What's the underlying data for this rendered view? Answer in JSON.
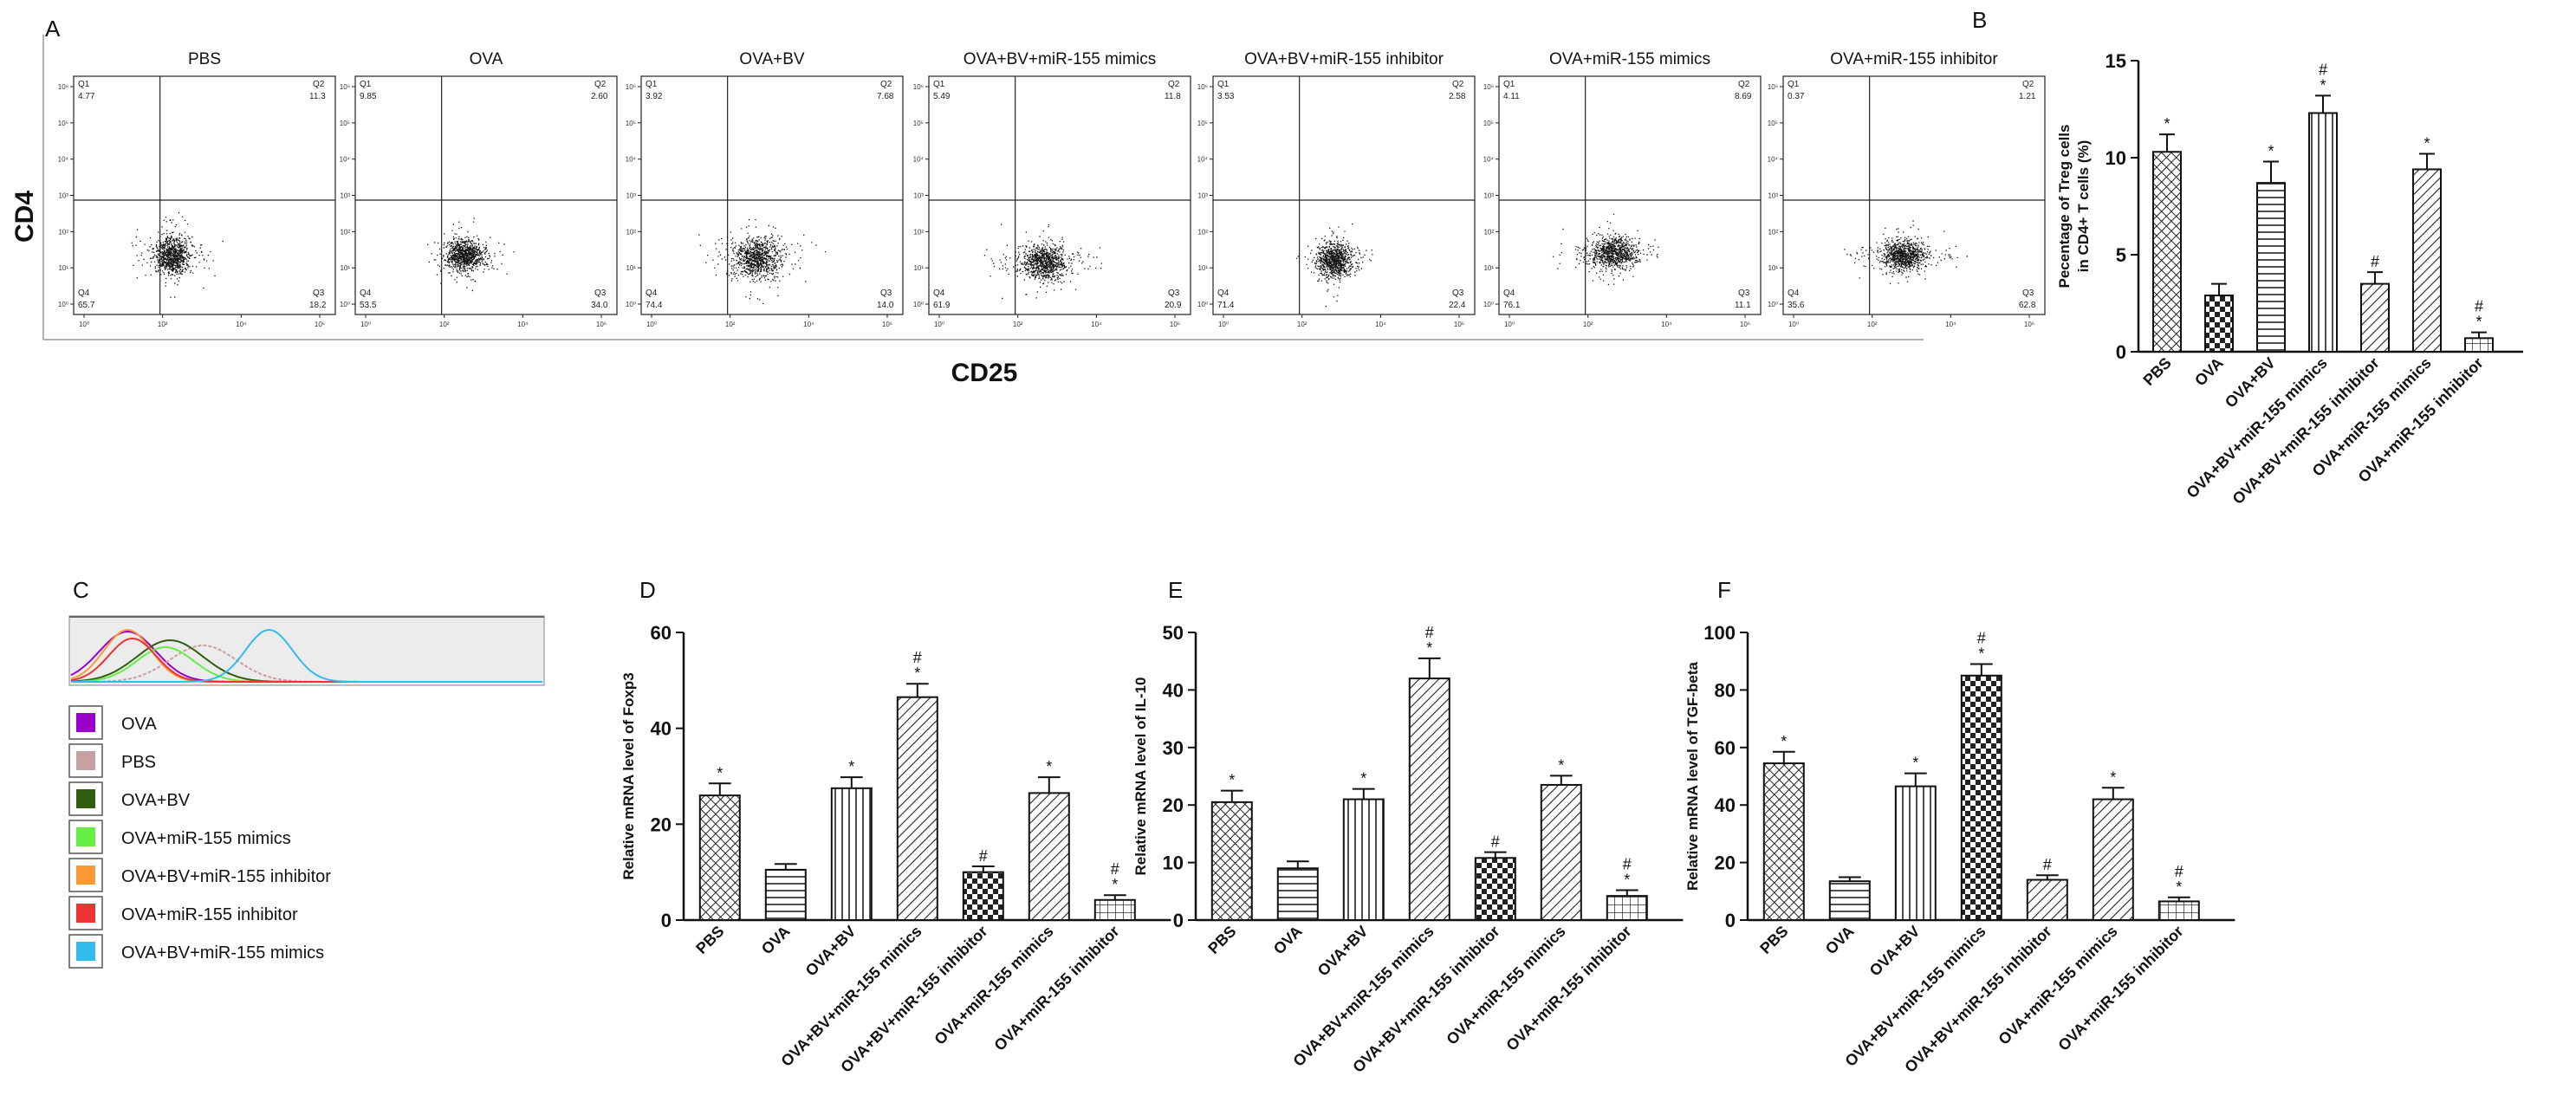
{
  "panels": {
    "A": "A",
    "B": "B",
    "C": "C",
    "D": "D",
    "E": "E",
    "F": "F"
  },
  "flow": {
    "y_axis": "CD4",
    "x_axis": "CD25",
    "tick_labels": [
      "10⁰",
      "10²",
      "10⁴",
      "10⁶"
    ],
    "plots": [
      {
        "title": "PBS",
        "q1": "4.77",
        "q2": "11.3",
        "q3": "18.2",
        "q4": "65.7"
      },
      {
        "title": "OVA",
        "q1": "9.85",
        "q2": "2.60",
        "q3": "34.0",
        "q4": "53.5"
      },
      {
        "title": "OVA+BV",
        "q1": "3.92",
        "q2": "7.68",
        "q3": "14.0",
        "q4": "74.4"
      },
      {
        "title": "OVA+BV+miR-155 mimics",
        "q1": "5.49",
        "q2": "11.8",
        "q3": "20.9",
        "q4": "61.9"
      },
      {
        "title": "OVA+BV+miR-155 inhibitor",
        "q1": "3.53",
        "q2": "2.58",
        "q3": "22.4",
        "q4": "71.4"
      },
      {
        "title": "OVA+miR-155 mimics",
        "q1": "4.11",
        "q2": "8.69",
        "q3": "11.1",
        "q4": "76.1"
      },
      {
        "title": "OVA+miR-155 inhibitor",
        "q1": "0.37",
        "q2": "1.21",
        "q3": "62.8",
        "q4": "35.6"
      }
    ]
  },
  "histogram": {
    "legend": [
      {
        "label": "OVA",
        "color": "#9900cc"
      },
      {
        "label": "PBS",
        "color": "#c8a0a0"
      },
      {
        "label": "OVA+BV",
        "color": "#2e5e0e"
      },
      {
        "label": "OVA+miR-155 mimics",
        "color": "#66ee44"
      },
      {
        "label": "OVA+BV+miR-155 inhibitor",
        "color": "#ff9933"
      },
      {
        "label": "OVA+miR-155 inhibitor",
        "color": "#ee3333"
      },
      {
        "label": "OVA+BV+miR-155 mimics",
        "color": "#33bbee"
      }
    ]
  },
  "chart_data": [
    {
      "id": "B",
      "type": "bar",
      "categories": [
        "PBS",
        "OVA",
        "OVA+BV",
        "OVA+BV+miR-155 mimics",
        "OVA+BV+miR-155 inhibitor",
        "OVA+miR-155 mimics",
        "OVA+miR-155 inhibitor"
      ],
      "values": [
        10.3,
        2.9,
        8.7,
        12.3,
        3.5,
        9.4,
        0.7
      ],
      "errors": [
        0.9,
        0.6,
        1.1,
        0.9,
        0.6,
        0.8,
        0.3
      ],
      "annotations": [
        "*",
        "",
        "*",
        "#\n*",
        "#",
        "*",
        "#\n*"
      ],
      "patterns": [
        "cross",
        "check",
        "hlines",
        "vlines",
        "diag",
        "diag",
        "grid"
      ],
      "ylabel_lines": [
        "Pecentage of Treg cells",
        "in CD4+ T cells (%)"
      ],
      "ylim": [
        0,
        15
      ],
      "yticks": [
        0,
        5,
        10,
        15
      ]
    },
    {
      "id": "D",
      "type": "bar",
      "categories": [
        "PBS",
        "OVA",
        "OVA+BV",
        "OVA+BV+miR-155 mimics",
        "OVA+BV+miR-155 inhibitor",
        "OVA+miR-155 mimics",
        "OVA+miR-155 inhibitor"
      ],
      "values": [
        26,
        10.5,
        27.5,
        46.5,
        10,
        26.5,
        4.2
      ],
      "errors": [
        2.5,
        1.2,
        2.3,
        2.8,
        1.2,
        3.3,
        1.0
      ],
      "annotations": [
        "*",
        "",
        "*",
        "#\n*",
        "#",
        "*",
        "#\n*"
      ],
      "patterns": [
        "cross",
        "hlines",
        "vlines",
        "diag",
        "check",
        "diag",
        "grid"
      ],
      "ylabel_lines": [
        "Relative mRNA level of Foxp3"
      ],
      "ylim": [
        0,
        60
      ],
      "yticks": [
        0,
        20,
        40,
        60
      ]
    },
    {
      "id": "E",
      "type": "bar",
      "categories": [
        "PBS",
        "OVA",
        "OVA+BV",
        "OVA+BV+miR-155 mimics",
        "OVA+BV+miR-155 inhibitor",
        "OVA+miR-155 mimics",
        "OVA+miR-155 inhibitor"
      ],
      "values": [
        20.5,
        9,
        21,
        42,
        10.8,
        23.5,
        4.2
      ],
      "errors": [
        2.0,
        1.2,
        1.8,
        3.5,
        1.0,
        1.6,
        1.0
      ],
      "annotations": [
        "*",
        "",
        "*",
        "#\n*",
        "#",
        "*",
        "#\n*"
      ],
      "patterns": [
        "cross",
        "hlines",
        "vlines",
        "diag",
        "check",
        "diag",
        "grid"
      ],
      "ylabel_lines": [
        "Relative mRNA level of IL-10"
      ],
      "ylim": [
        0,
        50
      ],
      "yticks": [
        0,
        10,
        20,
        30,
        40,
        50
      ]
    },
    {
      "id": "F",
      "type": "bar",
      "categories": [
        "PBS",
        "OVA",
        "OVA+BV",
        "OVA+BV+miR-155 mimics",
        "OVA+BV+miR-155 inhibitor",
        "OVA+miR-155 mimics",
        "OVA+miR-155 inhibitor"
      ],
      "values": [
        54.5,
        13.5,
        46.5,
        85,
        14,
        42,
        6.5
      ],
      "errors": [
        4.0,
        1.4,
        4.5,
        4.0,
        1.6,
        4.0,
        1.4
      ],
      "annotations": [
        "*",
        "",
        "*",
        "#\n*",
        "#",
        "*",
        "#\n*"
      ],
      "patterns": [
        "cross",
        "hlines",
        "vlines",
        "check",
        "diag",
        "diag",
        "grid"
      ],
      "ylabel_lines": [
        "Relative mRNA level of TGF-beta"
      ],
      "ylim": [
        0,
        100
      ],
      "yticks": [
        0,
        20,
        40,
        60,
        80,
        100
      ]
    }
  ]
}
